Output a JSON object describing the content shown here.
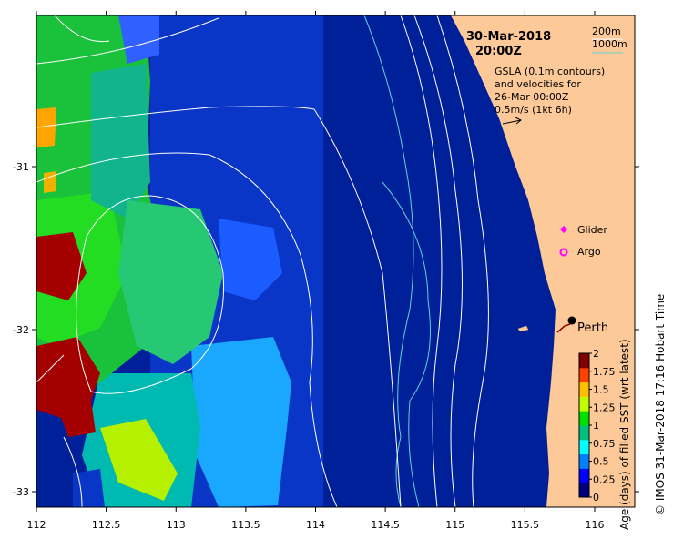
{
  "date": "30-Mar-2018",
  "time": "20:00Z",
  "contour_legend": {
    "line1": "200m",
    "line2": "1000m",
    "line2_color": "#5fd3d3"
  },
  "gsla_note": {
    "l1": "GSLA (0.1m contours)",
    "l2": "and velocities for",
    "l3": "26-Mar 00:00Z",
    "l4": "0.5m/s (1kt 6h)"
  },
  "legend_items": {
    "glider": "Glider",
    "argo": "Argo",
    "glider_color": "#ff00ff",
    "argo_color": "#ff00ff"
  },
  "place": "Perth",
  "x_ticks": [
    "112",
    "112.5",
    "113",
    "113.5",
    "114",
    "114.5",
    "115",
    "115.5",
    "116"
  ],
  "y_ticks": [
    "-31",
    "-32",
    "-33"
  ],
  "colorbar": {
    "label": "Age (days) of filled SST (wrt latest)",
    "ticks": [
      "2",
      "1.75",
      "1.5",
      "1.25",
      "1",
      "0.75",
      "0.5",
      "0.25",
      "0"
    ],
    "colors": [
      "#00007f",
      "#0000ff",
      "#007fff",
      "#00ffff",
      "#00c080",
      "#00e000",
      "#bfff00",
      "#ffbf00",
      "#ff4000",
      "#7f0000"
    ]
  },
  "credit": "© IMOS 31-Mar-2018 17:16 Hobart Time",
  "colors": {
    "land": "#fdc998",
    "deep": "#00209a",
    "mid": "#0a36c8"
  }
}
